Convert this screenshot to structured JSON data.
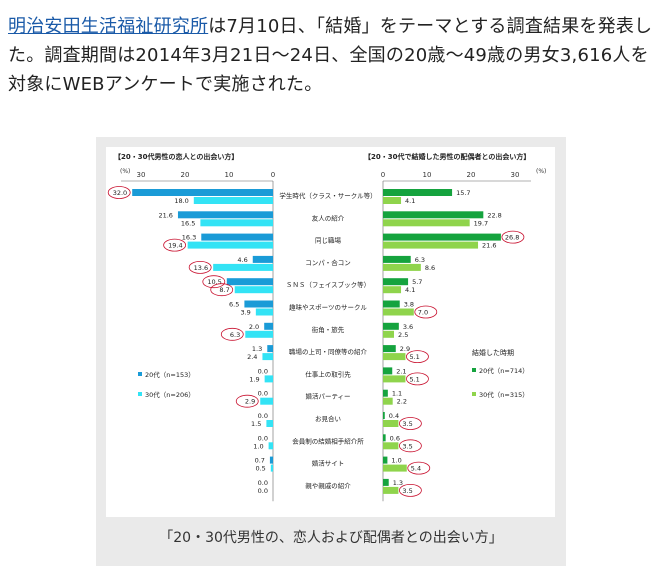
{
  "article": {
    "link_text": "明治安田生活福祉研究所",
    "text_rest": "は7月10日、「結婚」をテーマとする調査結果を発表した。調査期間は2014年3月21日～24日、全国の20歳～49歳の男女3,616人を対象にWEBアンケートで実施された。"
  },
  "figure": {
    "caption": "「20・30代男性の、恋人および配偶者との出会い方」",
    "colors": {
      "left_20s": "#1a9bd7",
      "left_30s": "#33e3f5",
      "right_20s": "#15a33e",
      "right_30s": "#8fd44c",
      "highlight": "#c8102e"
    }
  },
  "chart_data": [
    {
      "type": "bar",
      "orientation": "horizontal",
      "title": "【20・30代男性の恋人との出会い方】",
      "xlabel": "(%)",
      "xlim": [
        0,
        35
      ],
      "ticks": [
        30,
        20,
        10,
        0
      ],
      "categories": [
        "学生時代（クラス・サークル等）",
        "友人の紹介",
        "同じ職場",
        "コンパ・合コン",
        "ＳＮＳ（フェイスブック等）",
        "趣味やスポーツのサークル",
        "街角・旅先",
        "職場の上司・同僚等の紹介",
        "仕事上の取引先",
        "婚活パーティー",
        "お見合い",
        "会員制の結婚相手紹介所",
        "婚活サイト",
        "親や親戚の紹介"
      ],
      "series": [
        {
          "name": "20代（n=153）",
          "values": [
            32.0,
            21.6,
            16.3,
            4.6,
            10.5,
            6.5,
            2.0,
            1.3,
            0.0,
            0.0,
            0.0,
            0.0,
            0.7,
            0.0
          ]
        },
        {
          "name": "30代（n=206）",
          "values": [
            18.0,
            16.5,
            19.4,
            13.6,
            8.7,
            3.9,
            6.3,
            2.4,
            1.9,
            2.9,
            1.5,
            1.0,
            0.5,
            0.0
          ]
        }
      ],
      "highlighted": [
        [
          0,
          0
        ],
        [
          1,
          2
        ],
        [
          1,
          3
        ],
        [
          0,
          4
        ],
        [
          1,
          4
        ],
        [
          1,
          6
        ],
        [
          1,
          9
        ]
      ]
    },
    {
      "type": "bar",
      "orientation": "horizontal",
      "title": "【20・30代で結婚した男性の配偶者との出会い方】",
      "xlabel": "(%)",
      "xlim": [
        0,
        35
      ],
      "ticks": [
        0,
        10,
        20,
        30
      ],
      "legend_title": "結婚した時期",
      "categories": [
        "学生時代（クラス・サークル等）",
        "友人の紹介",
        "同じ職場",
        "コンパ・合コン",
        "ＳＮＳ（フェイスブック等）",
        "趣味やスポーツのサークル",
        "街角・旅先",
        "職場の上司・同僚等の紹介",
        "仕事上の取引先",
        "婚活パーティー",
        "お見合い",
        "会員制の結婚相手紹介所",
        "婚活サイト",
        "親や親戚の紹介"
      ],
      "series": [
        {
          "name": "20代（n=714）",
          "values": [
            15.7,
            22.8,
            26.8,
            6.3,
            5.7,
            3.8,
            3.6,
            2.9,
            2.1,
            1.1,
            0.4,
            0.6,
            1.0,
            1.3
          ]
        },
        {
          "name": "30代（n=315）",
          "values": [
            4.1,
            19.7,
            21.6,
            8.6,
            4.1,
            7.0,
            2.5,
            5.1,
            5.1,
            2.2,
            3.5,
            3.5,
            5.4,
            3.5
          ]
        }
      ],
      "highlighted": [
        [
          0,
          2
        ],
        [
          1,
          5
        ],
        [
          1,
          7
        ],
        [
          1,
          8
        ],
        [
          1,
          10
        ],
        [
          1,
          11
        ],
        [
          1,
          12
        ],
        [
          1,
          13
        ]
      ]
    }
  ]
}
